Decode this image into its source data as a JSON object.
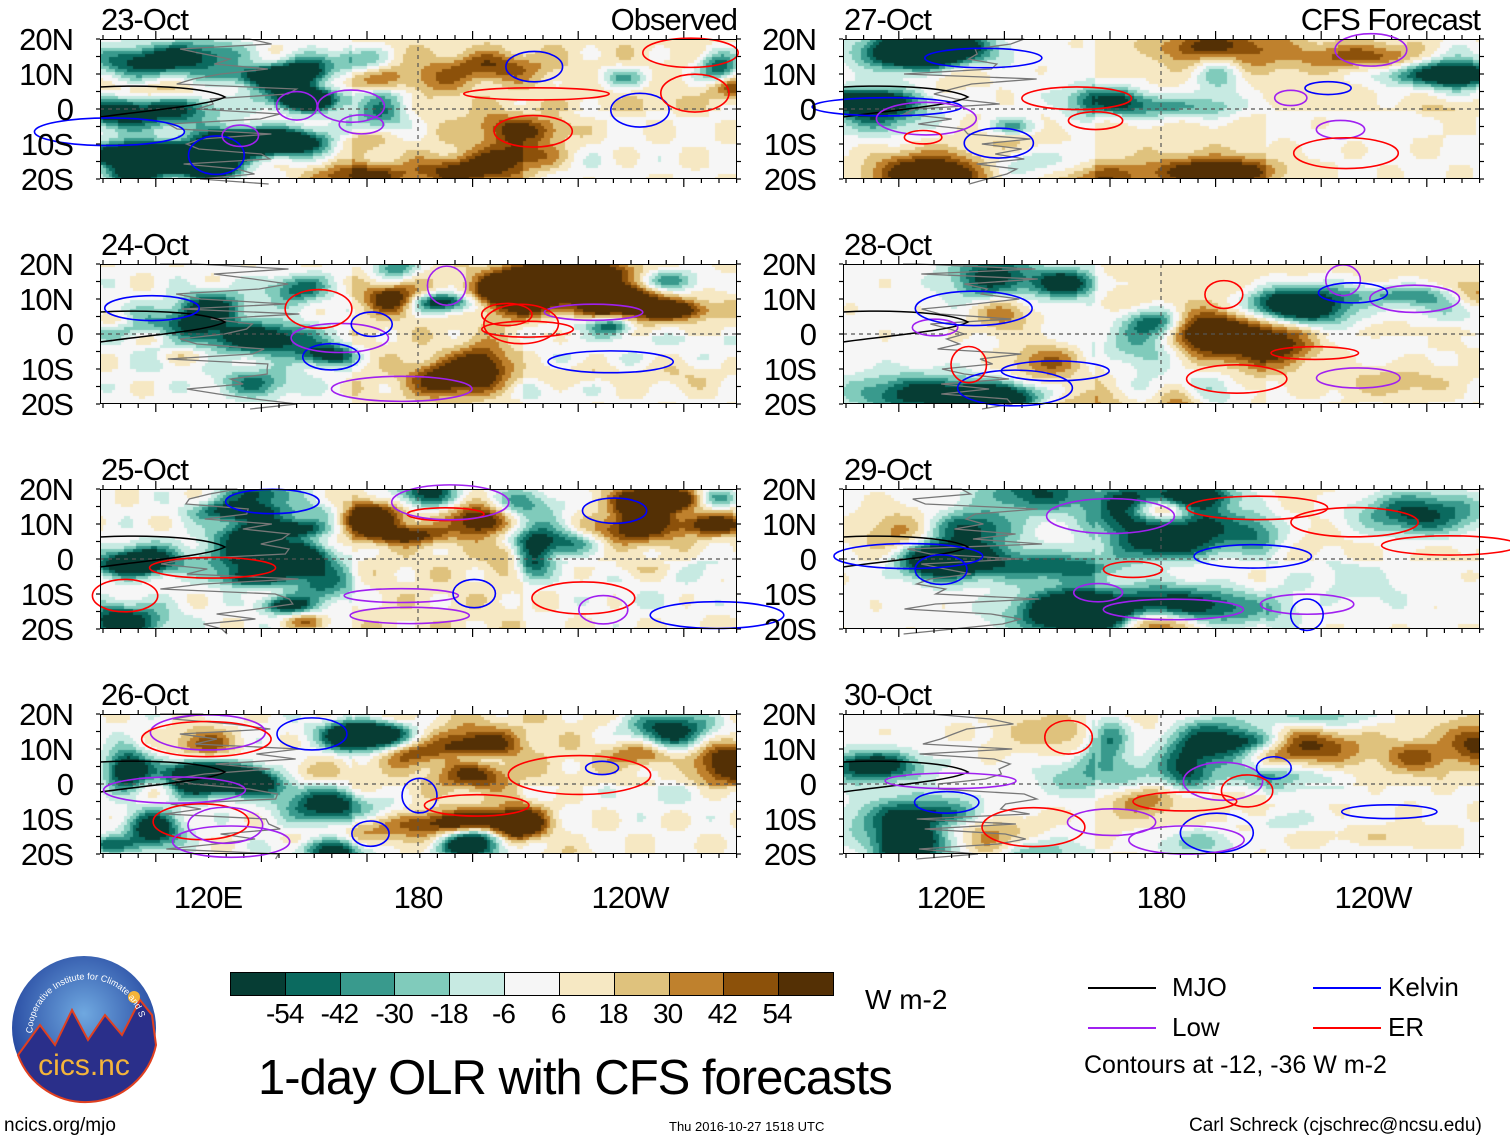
{
  "headers": {
    "left": "Observed",
    "right": "CFS Forecast"
  },
  "panels": [
    {
      "date": "23-Oct",
      "column": "observed",
      "seed": 11
    },
    {
      "date": "24-Oct",
      "column": "observed",
      "seed": 23
    },
    {
      "date": "25-Oct",
      "column": "observed",
      "seed": 37
    },
    {
      "date": "26-Oct",
      "column": "observed",
      "seed": 41
    },
    {
      "date": "27-Oct",
      "column": "forecast",
      "seed": 53
    },
    {
      "date": "28-Oct",
      "column": "forecast",
      "seed": 67
    },
    {
      "date": "29-Oct",
      "column": "forecast",
      "seed": 71
    },
    {
      "date": "30-Oct",
      "column": "forecast",
      "seed": 89
    }
  ],
  "lat_ticks": [
    "20N",
    "10N",
    "0",
    "10S",
    "20S"
  ],
  "lon_ticks": [
    "120E",
    "180",
    "120W"
  ],
  "colorbar": {
    "levels": [
      "-54",
      "-42",
      "-30",
      "-18",
      "-6",
      "6",
      "18",
      "30",
      "42",
      "54"
    ],
    "colors": [
      "#063d34",
      "#0b6a5f",
      "#399a8d",
      "#80cbbb",
      "#c7eae2",
      "#f6f6f6",
      "#f6e8c3",
      "#dfc27d",
      "#bf812d",
      "#8c510a",
      "#543005"
    ],
    "units": "W m-2"
  },
  "title": "1-day OLR with CFS forecasts",
  "legend": {
    "items": [
      {
        "label": "MJO",
        "color": "#000000"
      },
      {
        "label": "Kelvin",
        "color": "#0000ff"
      },
      {
        "label": "Low",
        "color": "#a020f0"
      },
      {
        "label": "ER",
        "color": "#ff0000"
      }
    ],
    "note": "Contours at -12, -36 W m-2"
  },
  "footer": {
    "left": "ncics.org/mjo",
    "center": "Thu 2016-10-27 1518 UTC",
    "right": "Carl Schreck (cjschrec@ncsu.edu)"
  },
  "logo": {
    "text": "cics.nc",
    "ring": "Cooperative Institute for Climate and Satellites"
  }
}
